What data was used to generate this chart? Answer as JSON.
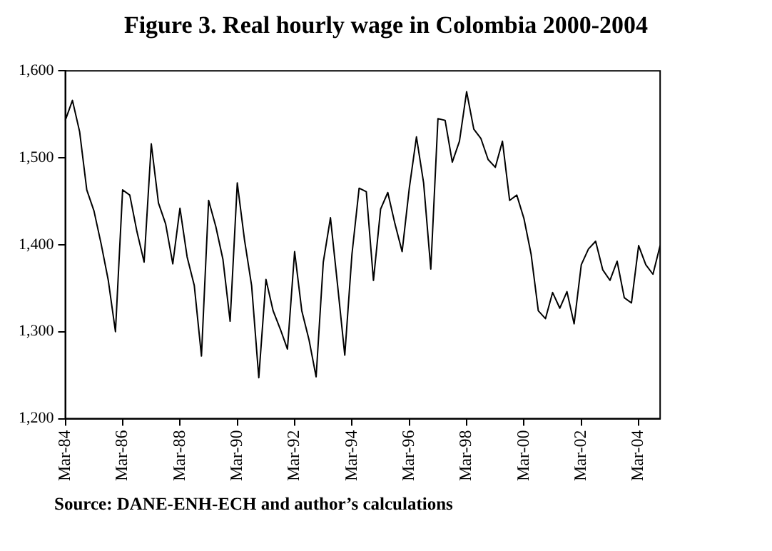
{
  "chart_data": {
    "type": "line",
    "title": "Figure 3. Real hourly wage in Colombia 2000-2004",
    "categories": [
      "Mar-84",
      null,
      null,
      null,
      null,
      null,
      null,
      null,
      "Mar-86",
      null,
      null,
      null,
      null,
      null,
      null,
      null,
      "Mar-88",
      null,
      null,
      null,
      null,
      null,
      null,
      null,
      "Mar-90",
      null,
      null,
      null,
      null,
      null,
      null,
      null,
      "Mar-92",
      null,
      null,
      null,
      null,
      null,
      null,
      null,
      "Mar-94",
      null,
      null,
      null,
      null,
      null,
      null,
      null,
      "Mar-96",
      null,
      null,
      null,
      null,
      null,
      null,
      null,
      "Mar-98",
      null,
      null,
      null,
      null,
      null,
      null,
      null,
      "Mar-00",
      null,
      null,
      null,
      null,
      null,
      null,
      null,
      "Mar-02",
      null,
      null,
      null,
      null,
      null,
      null,
      null,
      "Mar-04",
      null,
      null,
      null
    ],
    "series": [
      {
        "color": "#000000",
        "values": [
          1543,
          1566,
          1530,
          1463,
          1439,
          1401,
          1359,
          1300,
          1463,
          1457,
          1415,
          1380,
          1516,
          1448,
          1424,
          1378,
          1442,
          1386,
          1353,
          1272,
          1451,
          1421,
          1383,
          1312,
          1471,
          1406,
          1353,
          1247,
          1360,
          1324,
          1303,
          1280,
          1392,
          1324,
          1291,
          1248,
          1380,
          1431,
          1353,
          1273,
          1389,
          1465,
          1461,
          1359,
          1441,
          1460,
          1424,
          1392,
          1465,
          1524,
          1471,
          1372,
          1545,
          1543,
          1495,
          1519,
          1576,
          1533,
          1522,
          1498,
          1489,
          1519,
          1451,
          1457,
          1430,
          1389,
          1324,
          1315,
          1345,
          1327,
          1346,
          1309,
          1377,
          1395,
          1404,
          1371,
          1359,
          1381,
          1339,
          1333,
          1399,
          1377,
          1366,
          1399
        ]
      }
    ],
    "ylim": [
      1200,
      1600
    ],
    "yticks": [
      {
        "value": 1200,
        "label": "1,200"
      },
      {
        "value": 1300,
        "label": "1,300"
      },
      {
        "value": 1400,
        "label": "1,400"
      },
      {
        "value": 1500,
        "label": "1,500"
      },
      {
        "value": 1600,
        "label": "1,600"
      }
    ],
    "grid": false,
    "legend": false,
    "marker": "none",
    "line_style": "solid",
    "annotations": [
      "Source: DANE-ENH-ECH and author’s calculations"
    ]
  }
}
